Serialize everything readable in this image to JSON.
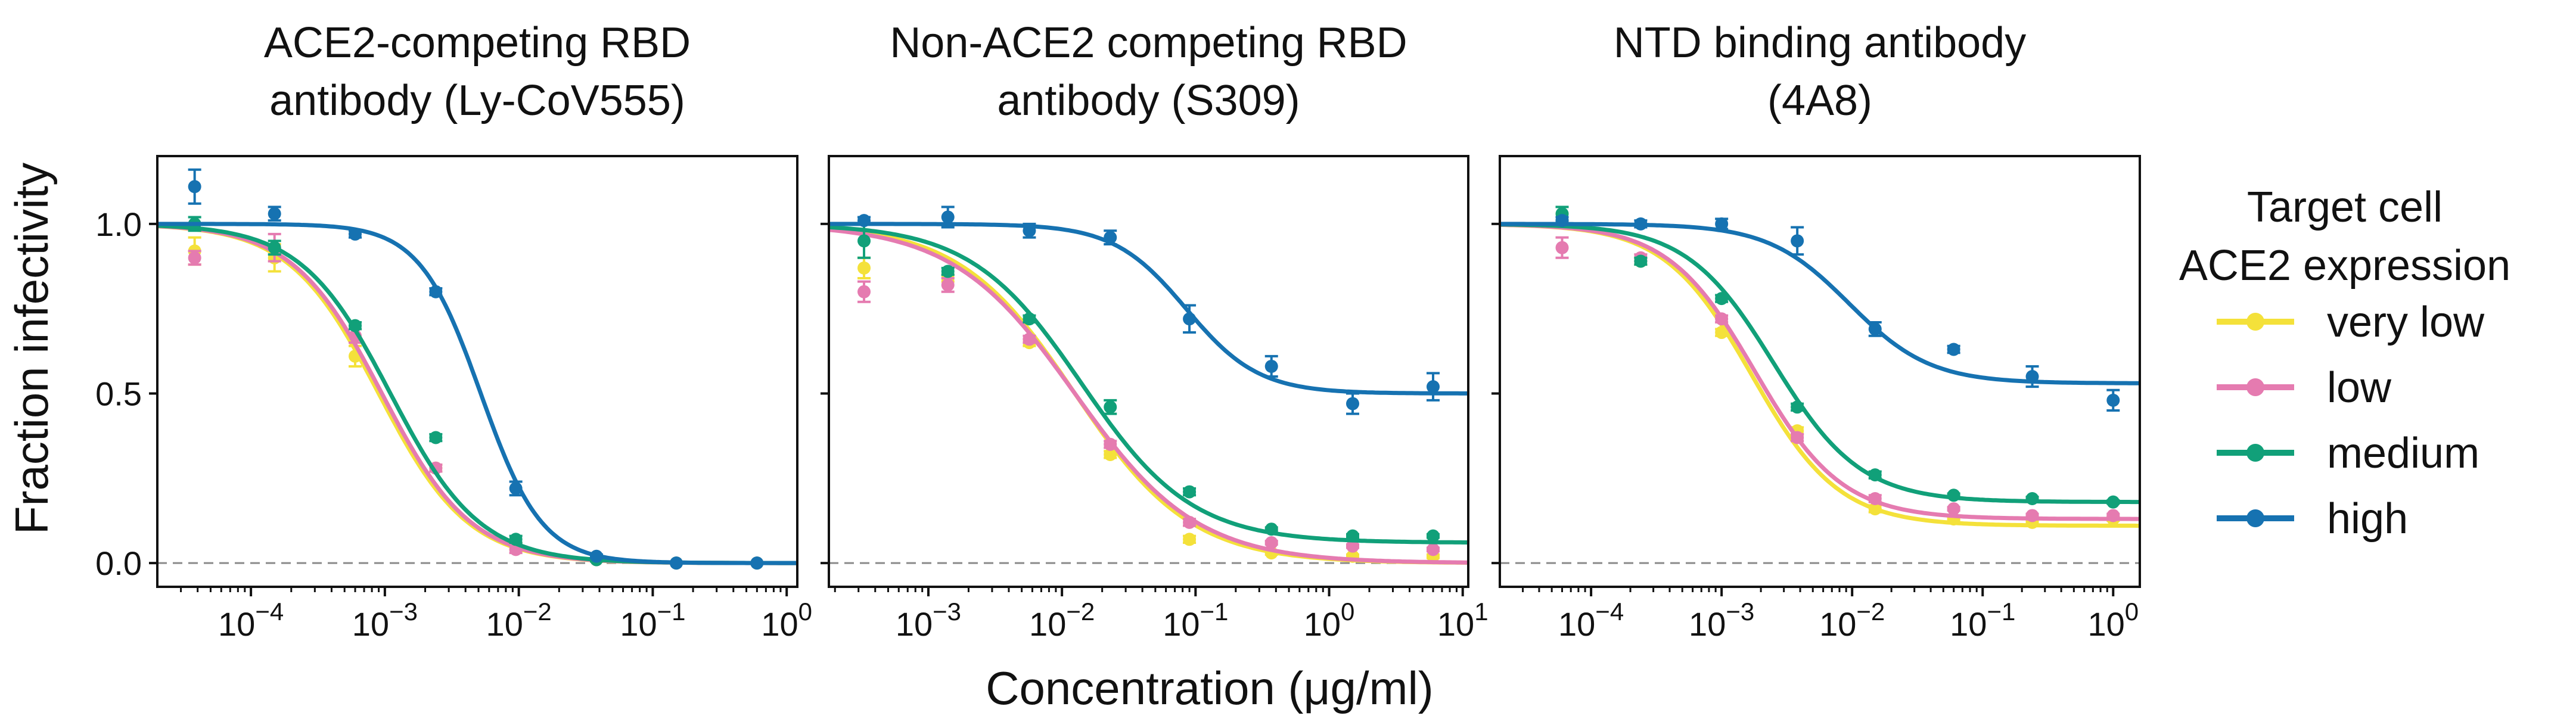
{
  "chart_data": {
    "type": "scatter",
    "ylabel": "Fraction infectivity",
    "xlabel": "Concentration (μg/ml)",
    "xscale": "log",
    "ylim": [
      -0.07,
      1.2
    ],
    "yticks": [
      {
        "value": 0.0,
        "label": "0.0"
      },
      {
        "value": 0.5,
        "label": "0.5"
      },
      {
        "value": 1.0,
        "label": "1.0"
      }
    ],
    "reference_line": {
      "y": 0,
      "style": "dashed"
    },
    "legend": {
      "title_lines": [
        "Target cell",
        "ACE2 expression"
      ],
      "placement": "right",
      "entries": [
        {
          "key": "very_low",
          "label": "very low",
          "color": "#F4E13A"
        },
        {
          "key": "low",
          "label": "low",
          "color": "#E57BB0"
        },
        {
          "key": "medium",
          "label": "medium",
          "color": "#11A079"
        },
        {
          "key": "high",
          "label": "high",
          "color": "#1672B1"
        }
      ]
    },
    "panels": [
      {
        "title_lines": [
          "ACE2-competing RBD",
          "antibody (Ly-CoV555)"
        ],
        "xlim": [
          2e-05,
          1.2
        ],
        "xticks": [
          {
            "value": 0.0001,
            "base": "10",
            "exp": "−4"
          },
          {
            "value": 0.001,
            "base": "10",
            "exp": "−3"
          },
          {
            "value": 0.01,
            "base": "10",
            "exp": "−2"
          },
          {
            "value": 0.1,
            "base": "10",
            "exp": "−1"
          },
          {
            "value": 1,
            "base": "10",
            "exp": "0"
          }
        ],
        "series": [
          {
            "key": "very_low",
            "fit": {
              "ic50": 0.0009,
              "hill": 1.3,
              "bottom": 0.0,
              "top": 1.0
            },
            "points": [
              {
                "x": 3.8e-05,
                "y": 0.92,
                "err": 0.04
              },
              {
                "x": 0.00015,
                "y": 0.9,
                "err": 0.04
              },
              {
                "x": 0.0006,
                "y": 0.61,
                "err": 0.03
              },
              {
                "x": 0.0024,
                "y": 0.28,
                "err": 0.01
              },
              {
                "x": 0.0095,
                "y": 0.05,
                "err": 0.01
              },
              {
                "x": 0.038,
                "y": 0.01,
                "err": 0.005
              },
              {
                "x": 0.15,
                "y": 0.0,
                "err": 0.003
              },
              {
                "x": 0.6,
                "y": 0.0,
                "err": 0.003
              }
            ]
          },
          {
            "key": "low",
            "fit": {
              "ic50": 0.00095,
              "hill": 1.3,
              "bottom": 0.0,
              "top": 1.0
            },
            "points": [
              {
                "x": 3.8e-05,
                "y": 0.9,
                "err": 0.02
              },
              {
                "x": 0.00015,
                "y": 0.93,
                "err": 0.04
              },
              {
                "x": 0.0006,
                "y": 0.67,
                "err": 0.02
              },
              {
                "x": 0.0024,
                "y": 0.28,
                "err": 0.01
              },
              {
                "x": 0.0095,
                "y": 0.04,
                "err": 0.01
              },
              {
                "x": 0.038,
                "y": 0.01,
                "err": 0.005
              },
              {
                "x": 0.15,
                "y": 0.0,
                "err": 0.003
              },
              {
                "x": 0.6,
                "y": 0.0,
                "err": 0.003
              }
            ]
          },
          {
            "key": "medium",
            "fit": {
              "ic50": 0.0011,
              "hill": 1.3,
              "bottom": 0.0,
              "top": 1.0
            },
            "points": [
              {
                "x": 3.8e-05,
                "y": 1.0,
                "err": 0.02
              },
              {
                "x": 0.00015,
                "y": 0.93,
                "err": 0.02
              },
              {
                "x": 0.0006,
                "y": 0.7,
                "err": 0.01
              },
              {
                "x": 0.0024,
                "y": 0.37,
                "err": 0.01
              },
              {
                "x": 0.0095,
                "y": 0.07,
                "err": 0.01
              },
              {
                "x": 0.038,
                "y": 0.01,
                "err": 0.005
              },
              {
                "x": 0.15,
                "y": 0.0,
                "err": 0.003
              },
              {
                "x": 0.6,
                "y": 0.0,
                "err": 0.003
              }
            ]
          },
          {
            "key": "high",
            "fit": {
              "ic50": 0.0052,
              "hill": 1.9,
              "bottom": 0.0,
              "top": 1.0
            },
            "points": [
              {
                "x": 3.8e-05,
                "y": 1.11,
                "err": 0.05
              },
              {
                "x": 0.00015,
                "y": 1.03,
                "err": 0.02
              },
              {
                "x": 0.0006,
                "y": 0.97,
                "err": 0.01
              },
              {
                "x": 0.0024,
                "y": 0.8,
                "err": 0.01
              },
              {
                "x": 0.0095,
                "y": 0.22,
                "err": 0.02
              },
              {
                "x": 0.038,
                "y": 0.02,
                "err": 0.005
              },
              {
                "x": 0.15,
                "y": 0.0,
                "err": 0.003
              },
              {
                "x": 0.6,
                "y": 0.0,
                "err": 0.003
              }
            ]
          }
        ]
      },
      {
        "title_lines": [
          "Non-ACE2 competing RBD",
          "antibody (S309)"
        ],
        "xlim": [
          0.00018,
          11
        ],
        "xticks": [
          {
            "value": 0.001,
            "base": "10",
            "exp": "−3"
          },
          {
            "value": 0.01,
            "base": "10",
            "exp": "−2"
          },
          {
            "value": 0.1,
            "base": "10",
            "exp": "−1"
          },
          {
            "value": 1,
            "base": "10",
            "exp": "0"
          },
          {
            "value": 10,
            "base": "10",
            "exp": "1"
          }
        ],
        "series": [
          {
            "key": "very_low",
            "fit": {
              "ic50": 0.0125,
              "hill": 1.0,
              "bottom": 0.0,
              "top": 1.0
            },
            "points": [
              {
                "x": 0.00033,
                "y": 0.87,
                "err": 0.03
              },
              {
                "x": 0.0014,
                "y": 0.84,
                "err": 0.01
              },
              {
                "x": 0.0057,
                "y": 0.65,
                "err": 0.01
              },
              {
                "x": 0.023,
                "y": 0.32,
                "err": 0.01
              },
              {
                "x": 0.09,
                "y": 0.07,
                "err": 0.01
              },
              {
                "x": 0.37,
                "y": 0.03,
                "err": 0.005
              },
              {
                "x": 1.5,
                "y": 0.02,
                "err": 0.005
              },
              {
                "x": 6.0,
                "y": 0.02,
                "err": 0.005
              }
            ]
          },
          {
            "key": "low",
            "fit": {
              "ic50": 0.0125,
              "hill": 0.95,
              "bottom": 0.0,
              "top": 1.0
            },
            "points": [
              {
                "x": 0.00033,
                "y": 0.8,
                "err": 0.03
              },
              {
                "x": 0.0014,
                "y": 0.82,
                "err": 0.02
              },
              {
                "x": 0.0057,
                "y": 0.66,
                "err": 0.01
              },
              {
                "x": 0.023,
                "y": 0.35,
                "err": 0.01
              },
              {
                "x": 0.09,
                "y": 0.12,
                "err": 0.01
              },
              {
                "x": 0.37,
                "y": 0.06,
                "err": 0.005
              },
              {
                "x": 1.5,
                "y": 0.05,
                "err": 0.005
              },
              {
                "x": 6.0,
                "y": 0.04,
                "err": 0.005
              }
            ]
          },
          {
            "key": "medium",
            "fit": {
              "ic50": 0.014,
              "hill": 1.05,
              "bottom": 0.06,
              "top": 1.0
            },
            "points": [
              {
                "x": 0.00033,
                "y": 0.95,
                "err": 0.05
              },
              {
                "x": 0.0014,
                "y": 0.86,
                "err": 0.01
              },
              {
                "x": 0.0057,
                "y": 0.72,
                "err": 0.01
              },
              {
                "x": 0.023,
                "y": 0.46,
                "err": 0.02
              },
              {
                "x": 0.09,
                "y": 0.21,
                "err": 0.01
              },
              {
                "x": 0.37,
                "y": 0.1,
                "err": 0.005
              },
              {
                "x": 1.5,
                "y": 0.08,
                "err": 0.005
              },
              {
                "x": 6.0,
                "y": 0.08,
                "err": 0.005
              }
            ]
          },
          {
            "key": "high",
            "fit": {
              "ic50": 0.085,
              "hill": 1.6,
              "bottom": 0.5,
              "top": 1.0
            },
            "points": [
              {
                "x": 0.00033,
                "y": 1.01,
                "err": 0.01
              },
              {
                "x": 0.0014,
                "y": 1.02,
                "err": 0.03
              },
              {
                "x": 0.0057,
                "y": 0.98,
                "err": 0.02
              },
              {
                "x": 0.023,
                "y": 0.96,
                "err": 0.02
              },
              {
                "x": 0.09,
                "y": 0.72,
                "err": 0.04
              },
              {
                "x": 0.37,
                "y": 0.58,
                "err": 0.03
              },
              {
                "x": 1.5,
                "y": 0.47,
                "err": 0.03
              },
              {
                "x": 6.0,
                "y": 0.52,
                "err": 0.04
              }
            ]
          }
        ]
      },
      {
        "title_lines": [
          "NTD binding antibody",
          "(4A8)"
        ],
        "xlim": [
          2e-05,
          1.6
        ],
        "xticks": [
          {
            "value": 0.0001,
            "base": "10",
            "exp": "−4"
          },
          {
            "value": 0.001,
            "base": "10",
            "exp": "−3"
          },
          {
            "value": 0.01,
            "base": "10",
            "exp": "−2"
          },
          {
            "value": 0.1,
            "base": "10",
            "exp": "−1"
          },
          {
            "value": 1,
            "base": "10",
            "exp": "0"
          }
        ],
        "series": [
          {
            "key": "very_low",
            "fit": {
              "ic50": 0.0017,
              "hill": 1.3,
              "bottom": 0.11,
              "top": 1.0
            },
            "points": [
              {
                "x": 6e-05,
                "y": 1.01,
                "err": 0.02
              },
              {
                "x": 0.00024,
                "y": 0.89,
                "err": 0.01
              },
              {
                "x": 0.001,
                "y": 0.68,
                "err": 0.01
              },
              {
                "x": 0.0038,
                "y": 0.39,
                "err": 0.01
              },
              {
                "x": 0.015,
                "y": 0.16,
                "err": 0.01
              },
              {
                "x": 0.06,
                "y": 0.13,
                "err": 0.005
              },
              {
                "x": 0.24,
                "y": 0.12,
                "err": 0.005
              },
              {
                "x": 1.0,
                "y": 0.13,
                "err": 0.005
              }
            ]
          },
          {
            "key": "low",
            "fit": {
              "ic50": 0.0018,
              "hill": 1.3,
              "bottom": 0.13,
              "top": 1.0
            },
            "points": [
              {
                "x": 6e-05,
                "y": 0.93,
                "err": 0.03
              },
              {
                "x": 0.00024,
                "y": 0.9,
                "err": 0.01
              },
              {
                "x": 0.001,
                "y": 0.72,
                "err": 0.01
              },
              {
                "x": 0.0038,
                "y": 0.37,
                "err": 0.01
              },
              {
                "x": 0.015,
                "y": 0.19,
                "err": 0.01
              },
              {
                "x": 0.06,
                "y": 0.16,
                "err": 0.005
              },
              {
                "x": 0.24,
                "y": 0.14,
                "err": 0.005
              },
              {
                "x": 1.0,
                "y": 0.14,
                "err": 0.005
              }
            ]
          },
          {
            "key": "medium",
            "fit": {
              "ic50": 0.0025,
              "hill": 1.3,
              "bottom": 0.18,
              "top": 1.0
            },
            "points": [
              {
                "x": 6e-05,
                "y": 1.03,
                "err": 0.02
              },
              {
                "x": 0.00024,
                "y": 0.89,
                "err": 0.01
              },
              {
                "x": 0.001,
                "y": 0.78,
                "err": 0.01
              },
              {
                "x": 0.0038,
                "y": 0.46,
                "err": 0.01
              },
              {
                "x": 0.015,
                "y": 0.26,
                "err": 0.01
              },
              {
                "x": 0.06,
                "y": 0.2,
                "err": 0.005
              },
              {
                "x": 0.24,
                "y": 0.19,
                "err": 0.005
              },
              {
                "x": 1.0,
                "y": 0.18,
                "err": 0.005
              }
            ]
          },
          {
            "key": "high",
            "fit": {
              "ic50": 0.0095,
              "hill": 1.4,
              "bottom": 0.53,
              "top": 1.0
            },
            "points": [
              {
                "x": 6e-05,
                "y": 1.01,
                "err": 0.01
              },
              {
                "x": 0.00024,
                "y": 1.0,
                "err": 0.01
              },
              {
                "x": 0.001,
                "y": 1.0,
                "err": 0.015
              },
              {
                "x": 0.0038,
                "y": 0.95,
                "err": 0.04
              },
              {
                "x": 0.015,
                "y": 0.69,
                "err": 0.02
              },
              {
                "x": 0.06,
                "y": 0.63,
                "err": 0.01
              },
              {
                "x": 0.24,
                "y": 0.55,
                "err": 0.03
              },
              {
                "x": 1.0,
                "y": 0.48,
                "err": 0.03
              }
            ]
          }
        ]
      }
    ]
  }
}
